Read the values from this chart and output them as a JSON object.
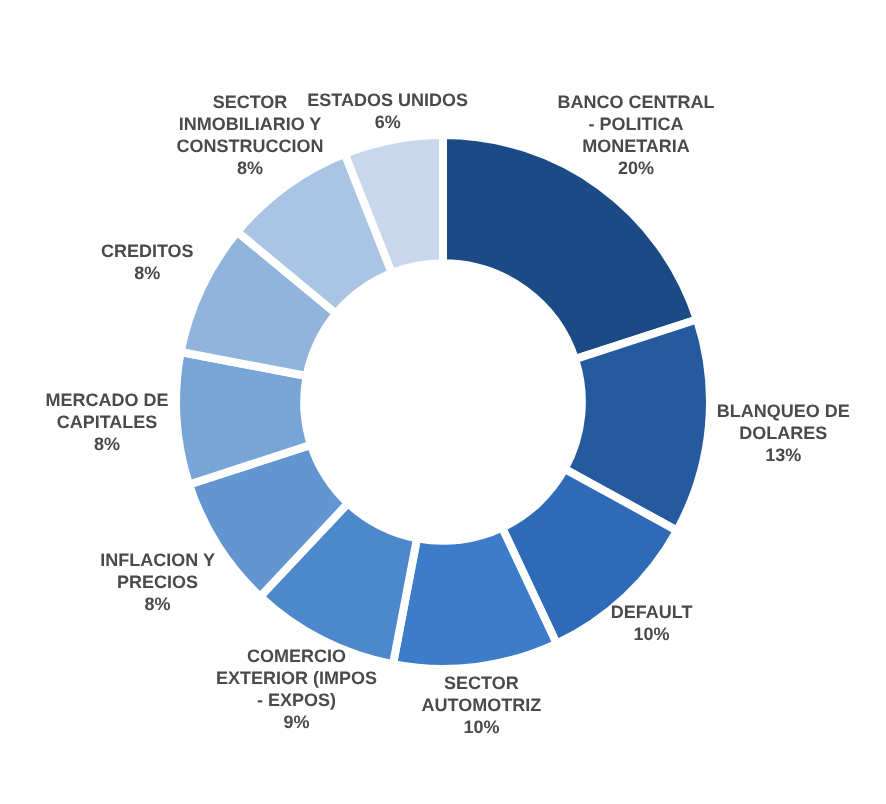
{
  "chart_data": {
    "type": "donut",
    "categories": [
      "BANCO CENTRAL - POLITICA MONETARIA",
      "BLANQUEO DE DOLARES",
      "DEFAULT",
      "SECTOR AUTOMOTRIZ",
      "COMERCIO EXTERIOR (IMPOS - EXPOS)",
      "INFLACION Y PRECIOS",
      "MERCADO DE CAPITALES",
      "CREDITOS",
      "SECTOR INMOBILIARIO Y CONSTRUCCION",
      "ESTADOS UNIDOS"
    ],
    "values": [
      20,
      13,
      10,
      10,
      9,
      8,
      8,
      8,
      8,
      6
    ],
    "value_labels": [
      "20%",
      "13%",
      "10%",
      "10%",
      "9%",
      "8%",
      "8%",
      "8%",
      "8%",
      "6%"
    ],
    "colors": [
      "#1c4a87",
      "#265a9e",
      "#2f6ab6",
      "#3d7cc8",
      "#4e88cc",
      "#6395d0",
      "#79a4d6",
      "#91b4dc",
      "#aac4e3",
      "#c8d7ec"
    ],
    "legend": false
  }
}
